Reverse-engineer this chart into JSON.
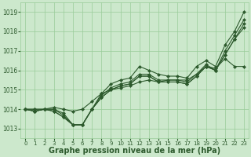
{
  "background_color": "#cce8cc",
  "plot_bg_color": "#cce8cc",
  "grid_color": "#99cc99",
  "line_color": "#2d5a2d",
  "xlabel": "Graphe pression niveau de la mer (hPa)",
  "xlabel_fontsize": 7,
  "xlim": [
    -0.5,
    23.5
  ],
  "ylim": [
    1012.5,
    1019.5
  ],
  "yticks": [
    1013,
    1014,
    1015,
    1016,
    1017,
    1018,
    1019
  ],
  "xticks": [
    0,
    1,
    2,
    3,
    4,
    5,
    6,
    7,
    8,
    9,
    10,
    11,
    12,
    13,
    14,
    15,
    16,
    17,
    18,
    19,
    20,
    21,
    22,
    23
  ],
  "series": [
    [
      1014.0,
      1014.0,
      1014.0,
      1014.0,
      1013.8,
      1013.2,
      1013.2,
      1014.0,
      1014.8,
      1015.3,
      1015.5,
      1015.6,
      1016.2,
      1016.0,
      1015.8,
      1015.7,
      1015.7,
      1015.6,
      1016.2,
      1016.5,
      1016.2,
      1017.3,
      1018.0,
      1019.0
    ],
    [
      1014.0,
      1013.9,
      1014.0,
      1014.0,
      1013.7,
      1013.2,
      1013.2,
      1014.0,
      1014.7,
      1015.1,
      1015.3,
      1015.4,
      1015.8,
      1015.8,
      1015.5,
      1015.5,
      1015.5,
      1015.4,
      1015.8,
      1016.3,
      1016.0,
      1017.0,
      1017.8,
      1018.6
    ],
    [
      1014.0,
      1013.9,
      1014.0,
      1013.9,
      1013.6,
      1013.2,
      1013.2,
      1014.0,
      1014.6,
      1015.0,
      1015.2,
      1015.3,
      1015.7,
      1015.7,
      1015.4,
      1015.4,
      1015.4,
      1015.3,
      1015.7,
      1016.2,
      1016.0,
      1016.8,
      1017.6,
      1018.4
    ],
    [
      1014.0,
      1013.9,
      1014.0,
      1013.9,
      1013.6,
      1013.2,
      1013.2,
      1014.0,
      1014.6,
      1015.0,
      1015.2,
      1015.3,
      1015.7,
      1015.7,
      1015.4,
      1015.4,
      1015.4,
      1015.3,
      1015.7,
      1016.2,
      1016.0,
      1016.8,
      1017.6,
      1018.2
    ],
    [
      1014.0,
      1014.0,
      1014.0,
      1014.1,
      1014.0,
      1013.9,
      1014.0,
      1014.4,
      1014.8,
      1015.0,
      1015.1,
      1015.2,
      1015.4,
      1015.5,
      1015.4,
      1015.5,
      1015.5,
      1015.5,
      1015.8,
      1016.2,
      1016.1,
      1016.6,
      1016.2,
      1016.2
    ]
  ],
  "marker": "D",
  "markersize": 2.0,
  "linewidth": 0.8
}
